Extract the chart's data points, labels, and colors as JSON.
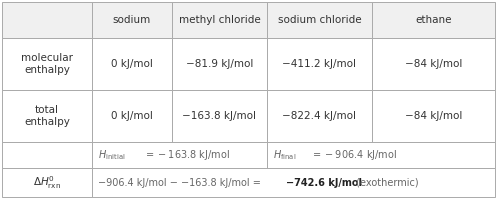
{
  "bg_color": "#f0f0f0",
  "border_color": "#aaaaaa",
  "col_headers": [
    "sodium",
    "methyl chloride",
    "sodium chloride",
    "ethane"
  ],
  "mol_enth": [
    "0 kJ/mol",
    "−81.9 kJ/mol",
    "−411.2 kJ/mol",
    "−84 kJ/mol"
  ],
  "tot_enth": [
    "0 kJ/mol",
    "−163.8 kJ/mol",
    "−822.4 kJ/mol",
    "−84 kJ/mol"
  ],
  "text_color": "#333333",
  "gray_text": "#666666",
  "figw": 4.97,
  "figh": 1.99
}
